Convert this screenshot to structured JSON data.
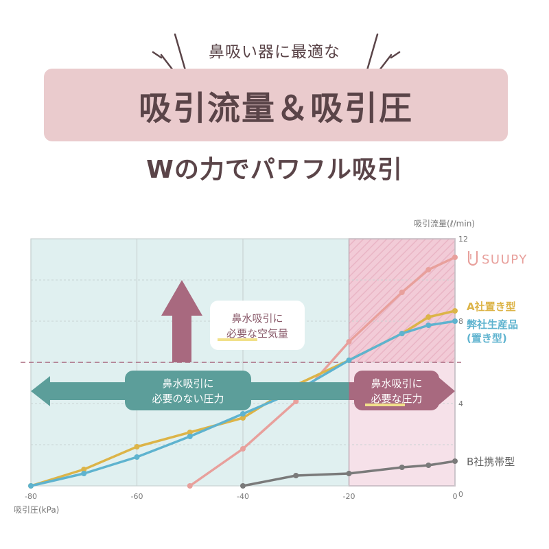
{
  "header": {
    "subtitle": "鼻吸い器に最適な",
    "title": "吸引流量＆吸引圧",
    "tagline": "Wの力でパワフル吸引"
  },
  "colors": {
    "suupy": "#e8a09c",
    "company_a": "#dcb448",
    "own": "#5eb3cf",
    "company_b": "#7a7a7a",
    "arrow_horizontal": "#5c9e9a",
    "arrow_vertical": "#a8697f",
    "plot_bg_left": "#e0f0f0",
    "plot_bg_right": "#f6e1e9",
    "text": "#5a4448"
  },
  "annotations": {
    "up_box": [
      "鼻水吸引に",
      "必要な空気量"
    ],
    "left_box": [
      "鼻水吸引に",
      "必要のない圧力"
    ],
    "right_box": [
      "鼻水吸引に",
      "必要な圧力"
    ]
  },
  "chart_data": {
    "type": "line",
    "xlabel": "吸引圧(kPa)",
    "ylabel": "吸引流量(ℓ/min)",
    "xlim": [
      -80,
      0
    ],
    "ylim": [
      0,
      12
    ],
    "x_ticks": [
      -80,
      -60,
      -40,
      -20,
      0
    ],
    "y_ticks": [
      0,
      4,
      8,
      12
    ],
    "threshold_flow": 6,
    "highlight_region_x": [
      -20,
      0
    ],
    "logo_label": "SUUPY",
    "series": [
      {
        "name": "SUUPY",
        "color": "#e8a09c",
        "points": [
          [
            -50,
            0
          ],
          [
            -40,
            1.8
          ],
          [
            -30,
            4.1
          ],
          [
            -20,
            7.0
          ],
          [
            -10,
            9.4
          ],
          [
            -5,
            10.5
          ],
          [
            0,
            11.1
          ]
        ]
      },
      {
        "name": "A社置き型",
        "color": "#dcb448",
        "points": [
          [
            -80,
            0
          ],
          [
            -70,
            0.8
          ],
          [
            -60,
            1.9
          ],
          [
            -50,
            2.6
          ],
          [
            -40,
            3.3
          ],
          [
            -30,
            4.9
          ],
          [
            -20,
            6.1
          ],
          [
            -10,
            7.4
          ],
          [
            -5,
            8.2
          ],
          [
            0,
            8.5
          ]
        ]
      },
      {
        "name": "弊社生産品(置き型)",
        "label_lines": [
          "弊社生産品",
          "(置き型)"
        ],
        "color": "#5eb3cf",
        "points": [
          [
            -80,
            0
          ],
          [
            -70,
            0.6
          ],
          [
            -60,
            1.4
          ],
          [
            -50,
            2.4
          ],
          [
            -40,
            3.5
          ],
          [
            -30,
            4.6
          ],
          [
            -20,
            6.1
          ],
          [
            -10,
            7.4
          ],
          [
            -5,
            7.8
          ],
          [
            0,
            8.0
          ]
        ]
      },
      {
        "name": "B社携帯型",
        "color": "#7a7a7a",
        "points": [
          [
            -40,
            0
          ],
          [
            -30,
            0.5
          ],
          [
            -20,
            0.6
          ],
          [
            -10,
            0.9
          ],
          [
            -5,
            1.0
          ],
          [
            0,
            1.2
          ]
        ]
      }
    ]
  }
}
